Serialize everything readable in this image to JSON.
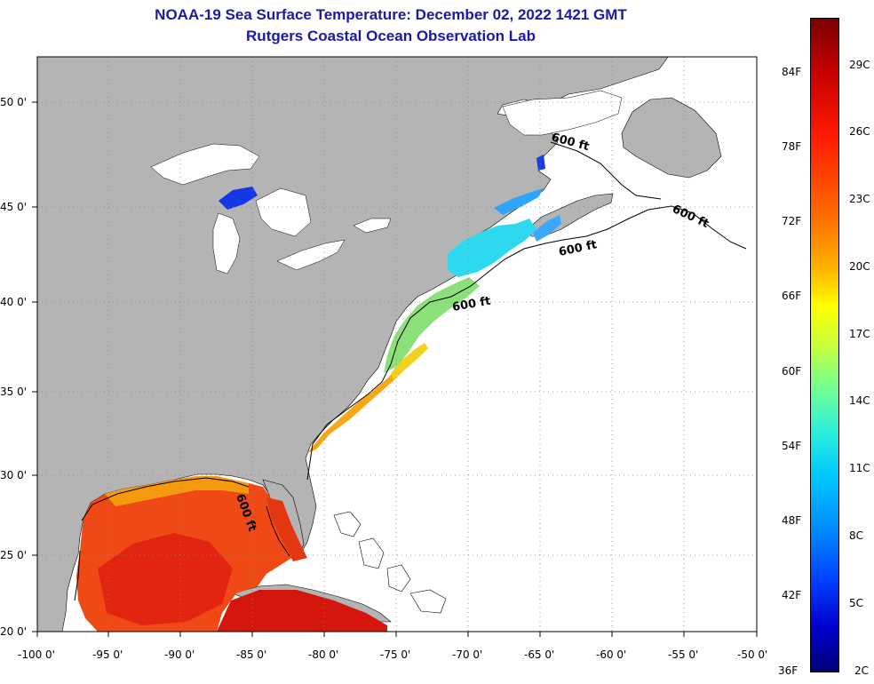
{
  "title": {
    "line1": "NOAA-19 Sea Surface Temperature:  December 02, 2022 1421 GMT",
    "line2": "Rutgers Coastal Ocean Observation Lab"
  },
  "map": {
    "lat_labels": [
      "50 0'",
      "45 0'",
      "40 0'",
      "35 0'",
      "30 0'",
      "25 0'",
      "20 0'"
    ],
    "lon_labels": [
      "-100 0'",
      "-95 0'",
      "-90 0'",
      "-85 0'",
      "-80 0'",
      "-75 0'",
      "-70 0'",
      "-65 0'",
      "-60 0'",
      "-55 0'",
      "-50 0'"
    ],
    "isobath_label": "600 ft",
    "colors": {
      "land": "#b4b4b4",
      "ocean_no_data": "#ffffff",
      "grid": "#888888"
    }
  },
  "colorbar": {
    "fahrenheit": [
      "84F",
      "78F",
      "72F",
      "66F",
      "60F",
      "54F",
      "48F",
      "42F",
      "36F"
    ],
    "celsius": [
      "29C",
      "26C",
      "23C",
      "20C",
      "17C",
      "14C",
      "11C",
      "8C",
      "5C",
      "2C"
    ]
  }
}
